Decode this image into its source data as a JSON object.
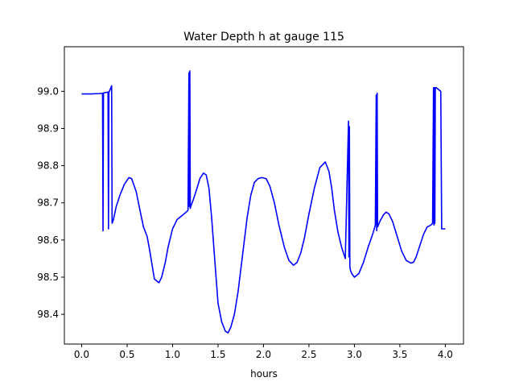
{
  "chart_data": {
    "type": "line",
    "title": "Water Depth h at gauge 115",
    "xlabel": "hours",
    "ylabel": "",
    "xlim": [
      -0.19,
      4.2
    ],
    "ylim": [
      98.32,
      99.12
    ],
    "xticks": [
      0.0,
      0.5,
      1.0,
      1.5,
      2.0,
      2.5,
      3.0,
      3.5,
      4.0
    ],
    "xtick_labels": [
      "0.0",
      "0.5",
      "1.0",
      "1.5",
      "2.0",
      "2.5",
      "3.0",
      "3.5",
      "4.0"
    ],
    "yticks": [
      98.4,
      98.5,
      98.6,
      98.7,
      98.8,
      98.9,
      99.0
    ],
    "ytick_labels": [
      "98.4",
      "98.5",
      "98.6",
      "98.7",
      "98.8",
      "98.9",
      "99.0"
    ],
    "grid": false,
    "series": [
      {
        "color": "#0000ff",
        "x": [
          0.0,
          0.1,
          0.2,
          0.23,
          0.235,
          0.24,
          0.245,
          0.29,
          0.295,
          0.3,
          0.305,
          0.33,
          0.335,
          0.34,
          0.35,
          0.38,
          0.42,
          0.47,
          0.52,
          0.55,
          0.6,
          0.65,
          0.68,
          0.72,
          0.75,
          0.8,
          0.85,
          0.88,
          0.92,
          0.95,
          1.0,
          1.05,
          1.1,
          1.15,
          1.17,
          1.18,
          1.185,
          1.19,
          1.195,
          1.2,
          1.23,
          1.27,
          1.3,
          1.34,
          1.37,
          1.4,
          1.43,
          1.46,
          1.5,
          1.54,
          1.58,
          1.61,
          1.64,
          1.68,
          1.72,
          1.77,
          1.82,
          1.86,
          1.9,
          1.94,
          1.98,
          2.03,
          2.07,
          2.12,
          2.17,
          2.23,
          2.28,
          2.33,
          2.37,
          2.41,
          2.45,
          2.5,
          2.56,
          2.62,
          2.68,
          2.72,
          2.75,
          2.78,
          2.82,
          2.86,
          2.9,
          2.935,
          2.94,
          2.945,
          2.95,
          2.955,
          2.97,
          3.0,
          3.05,
          3.1,
          3.15,
          3.2,
          3.23,
          3.24,
          3.245,
          3.25,
          3.255,
          3.28,
          3.32,
          3.35,
          3.38,
          3.42,
          3.47,
          3.52,
          3.57,
          3.62,
          3.65,
          3.68,
          3.72,
          3.76,
          3.8,
          3.84,
          3.86,
          3.87,
          3.875,
          3.88,
          3.885,
          3.89,
          3.9,
          3.95,
          3.96,
          4.0
        ],
        "y": [
          98.993,
          98.993,
          98.994,
          98.995,
          98.625,
          98.995,
          98.996,
          98.998,
          98.63,
          98.998,
          99.0,
          99.015,
          98.645,
          98.648,
          98.655,
          98.69,
          98.72,
          98.75,
          98.768,
          98.765,
          98.73,
          98.67,
          98.635,
          98.61,
          98.57,
          98.495,
          98.485,
          98.5,
          98.54,
          98.58,
          98.63,
          98.655,
          98.665,
          98.675,
          98.68,
          99.05,
          98.69,
          99.055,
          98.685,
          98.69,
          98.71,
          98.74,
          98.765,
          98.78,
          98.775,
          98.74,
          98.66,
          98.56,
          98.43,
          98.38,
          98.355,
          98.35,
          98.365,
          98.4,
          98.46,
          98.56,
          98.66,
          98.72,
          98.755,
          98.765,
          98.768,
          98.765,
          98.745,
          98.7,
          98.64,
          98.58,
          98.545,
          98.532,
          98.54,
          98.565,
          98.605,
          98.67,
          98.74,
          98.795,
          98.81,
          98.785,
          98.74,
          98.68,
          98.62,
          98.58,
          98.55,
          98.92,
          98.555,
          98.905,
          98.53,
          98.52,
          98.51,
          98.5,
          98.51,
          98.54,
          98.58,
          98.615,
          98.64,
          98.99,
          98.625,
          98.995,
          98.635,
          98.65,
          98.668,
          98.675,
          98.67,
          98.65,
          98.61,
          98.57,
          98.545,
          98.538,
          98.54,
          98.555,
          98.585,
          98.615,
          98.635,
          98.64,
          98.645,
          99.01,
          98.64,
          99.01,
          98.645,
          99.01,
          99.01,
          99.0,
          98.63,
          98.63
        ]
      }
    ]
  }
}
